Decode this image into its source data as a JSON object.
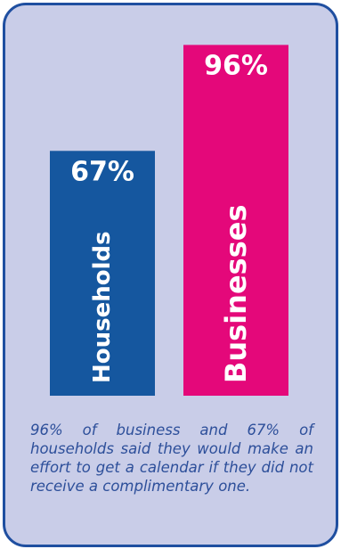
{
  "chart_data": {
    "type": "bar",
    "categories": [
      "Households",
      "Businesses"
    ],
    "values": [
      67,
      96
    ],
    "data_labels": [
      "67%",
      "96%"
    ],
    "ylim": [
      0,
      100
    ],
    "grid": false,
    "legend": "none"
  },
  "colors": {
    "households": "#15579f",
    "businesses": "#e4087a",
    "card_bg": "#c9cde8",
    "card_border": "#1f4fa0",
    "caption": "#2d4f9a"
  },
  "caption": "96% of business and 67% of households said they would make an effort to get a calendar if they did not receive a complimentary one."
}
